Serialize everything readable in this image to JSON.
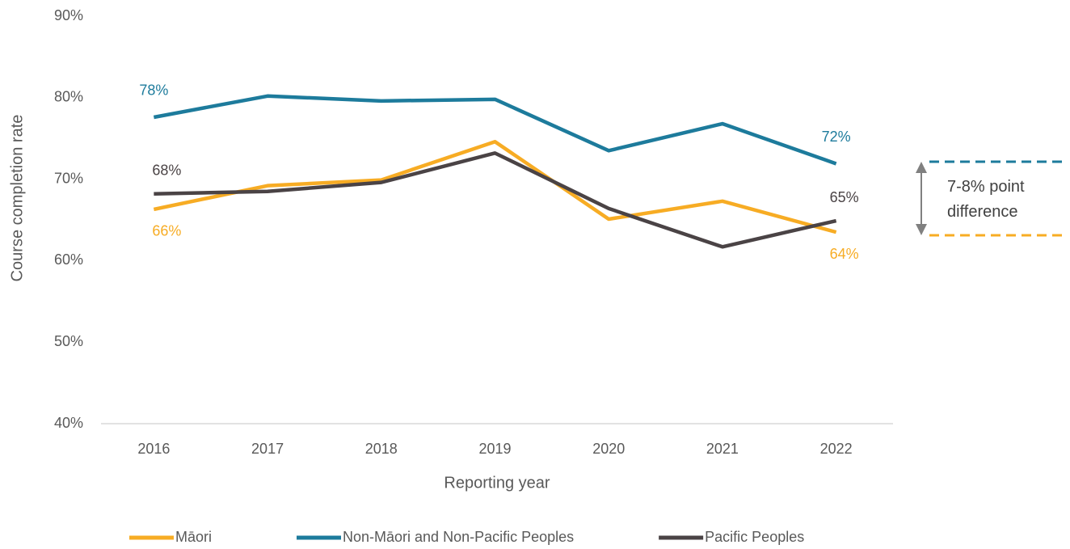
{
  "chart_data": {
    "type": "line",
    "y_label": "Course completion rate",
    "x_label": "Reporting year",
    "annotation": "7-8% point difference",
    "categories": [
      "2016",
      "2017",
      "2018",
      "2019",
      "2020",
      "2021",
      "2022"
    ],
    "series": [
      {
        "name": "Māori",
        "color": "#f7ac24",
        "values": [
          66.3,
          69.2,
          69.9,
          74.6,
          65.1,
          67.3,
          63.5
        ],
        "value_labels": [
          "66%",
          null,
          null,
          null,
          null,
          null,
          "64%"
        ]
      },
      {
        "name": "Non-Māori and Non-Pacific Peoples",
        "color": "#1d7b9c",
        "values": [
          77.6,
          80.2,
          79.6,
          79.8,
          73.5,
          76.8,
          71.9
        ],
        "value_labels": [
          "78%",
          null,
          null,
          null,
          null,
          null,
          "72%"
        ]
      },
      {
        "name": "Pacific Peoples",
        "color": "#4a4345",
        "values": [
          68.2,
          68.5,
          69.6,
          73.2,
          66.4,
          61.7,
          64.9
        ],
        "value_labels": [
          "68%",
          null,
          null,
          null,
          null,
          null,
          "65%"
        ]
      }
    ],
    "ylim": [
      40,
      90
    ],
    "yticks": [
      {
        "value": 40,
        "label": "40%"
      },
      {
        "value": 50,
        "label": "50%"
      },
      {
        "value": 60,
        "label": "60%"
      },
      {
        "value": 70,
        "label": "70%"
      },
      {
        "value": 80,
        "label": "80%"
      },
      {
        "value": 90,
        "label": "90%"
      }
    ],
    "grid": false
  }
}
